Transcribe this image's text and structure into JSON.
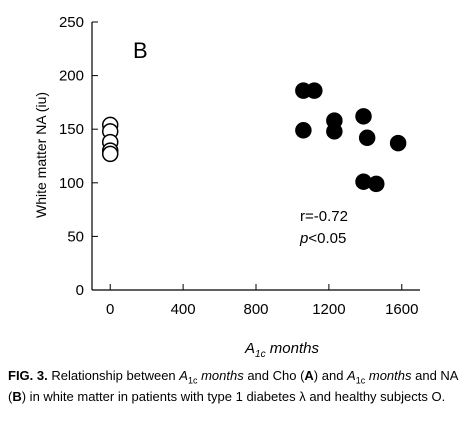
{
  "chart_data": {
    "type": "scatter",
    "panel_label": "B",
    "ylabel": "White matter NA (iu)",
    "xlabel_main": "A",
    "xlabel_sub": "1c",
    "xlabel_rest": " months",
    "xlim": [
      -100,
      1700
    ],
    "ylim": [
      0,
      250
    ],
    "xticks": [
      0,
      400,
      800,
      1200,
      1600
    ],
    "yticks": [
      0,
      50,
      100,
      150,
      200,
      250
    ],
    "grid": false,
    "series": [
      {
        "marker": "open-circle",
        "points": [
          [
            0,
            154
          ],
          [
            0,
            148
          ],
          [
            0,
            138
          ],
          [
            0,
            130
          ],
          [
            0,
            127
          ]
        ]
      },
      {
        "marker": "filled-circle",
        "points": [
          [
            1060,
            186
          ],
          [
            1120,
            186
          ],
          [
            1060,
            149
          ],
          [
            1230,
            158
          ],
          [
            1230,
            148
          ],
          [
            1390,
            162
          ],
          [
            1410,
            142
          ],
          [
            1580,
            137
          ],
          [
            1390,
            101
          ],
          [
            1460,
            99
          ]
        ]
      }
    ],
    "annotations": [
      "r=-0.72",
      "<0.05"
    ],
    "annotation_p": "p"
  },
  "caption": {
    "fig": "FIG. 3.",
    "t1": " Relationship between ",
    "a1": "A",
    "s1": "1c",
    "m1": " months",
    "t2": " and Cho (",
    "bA": "A",
    "t3": ") and ",
    "a2": "A",
    "s2": "1c",
    "m2": "months",
    "t4": " and NA (",
    "bB": "B",
    "t5": ") in white matter in patients with type 1 diabetes λ and healthy subjects O."
  }
}
